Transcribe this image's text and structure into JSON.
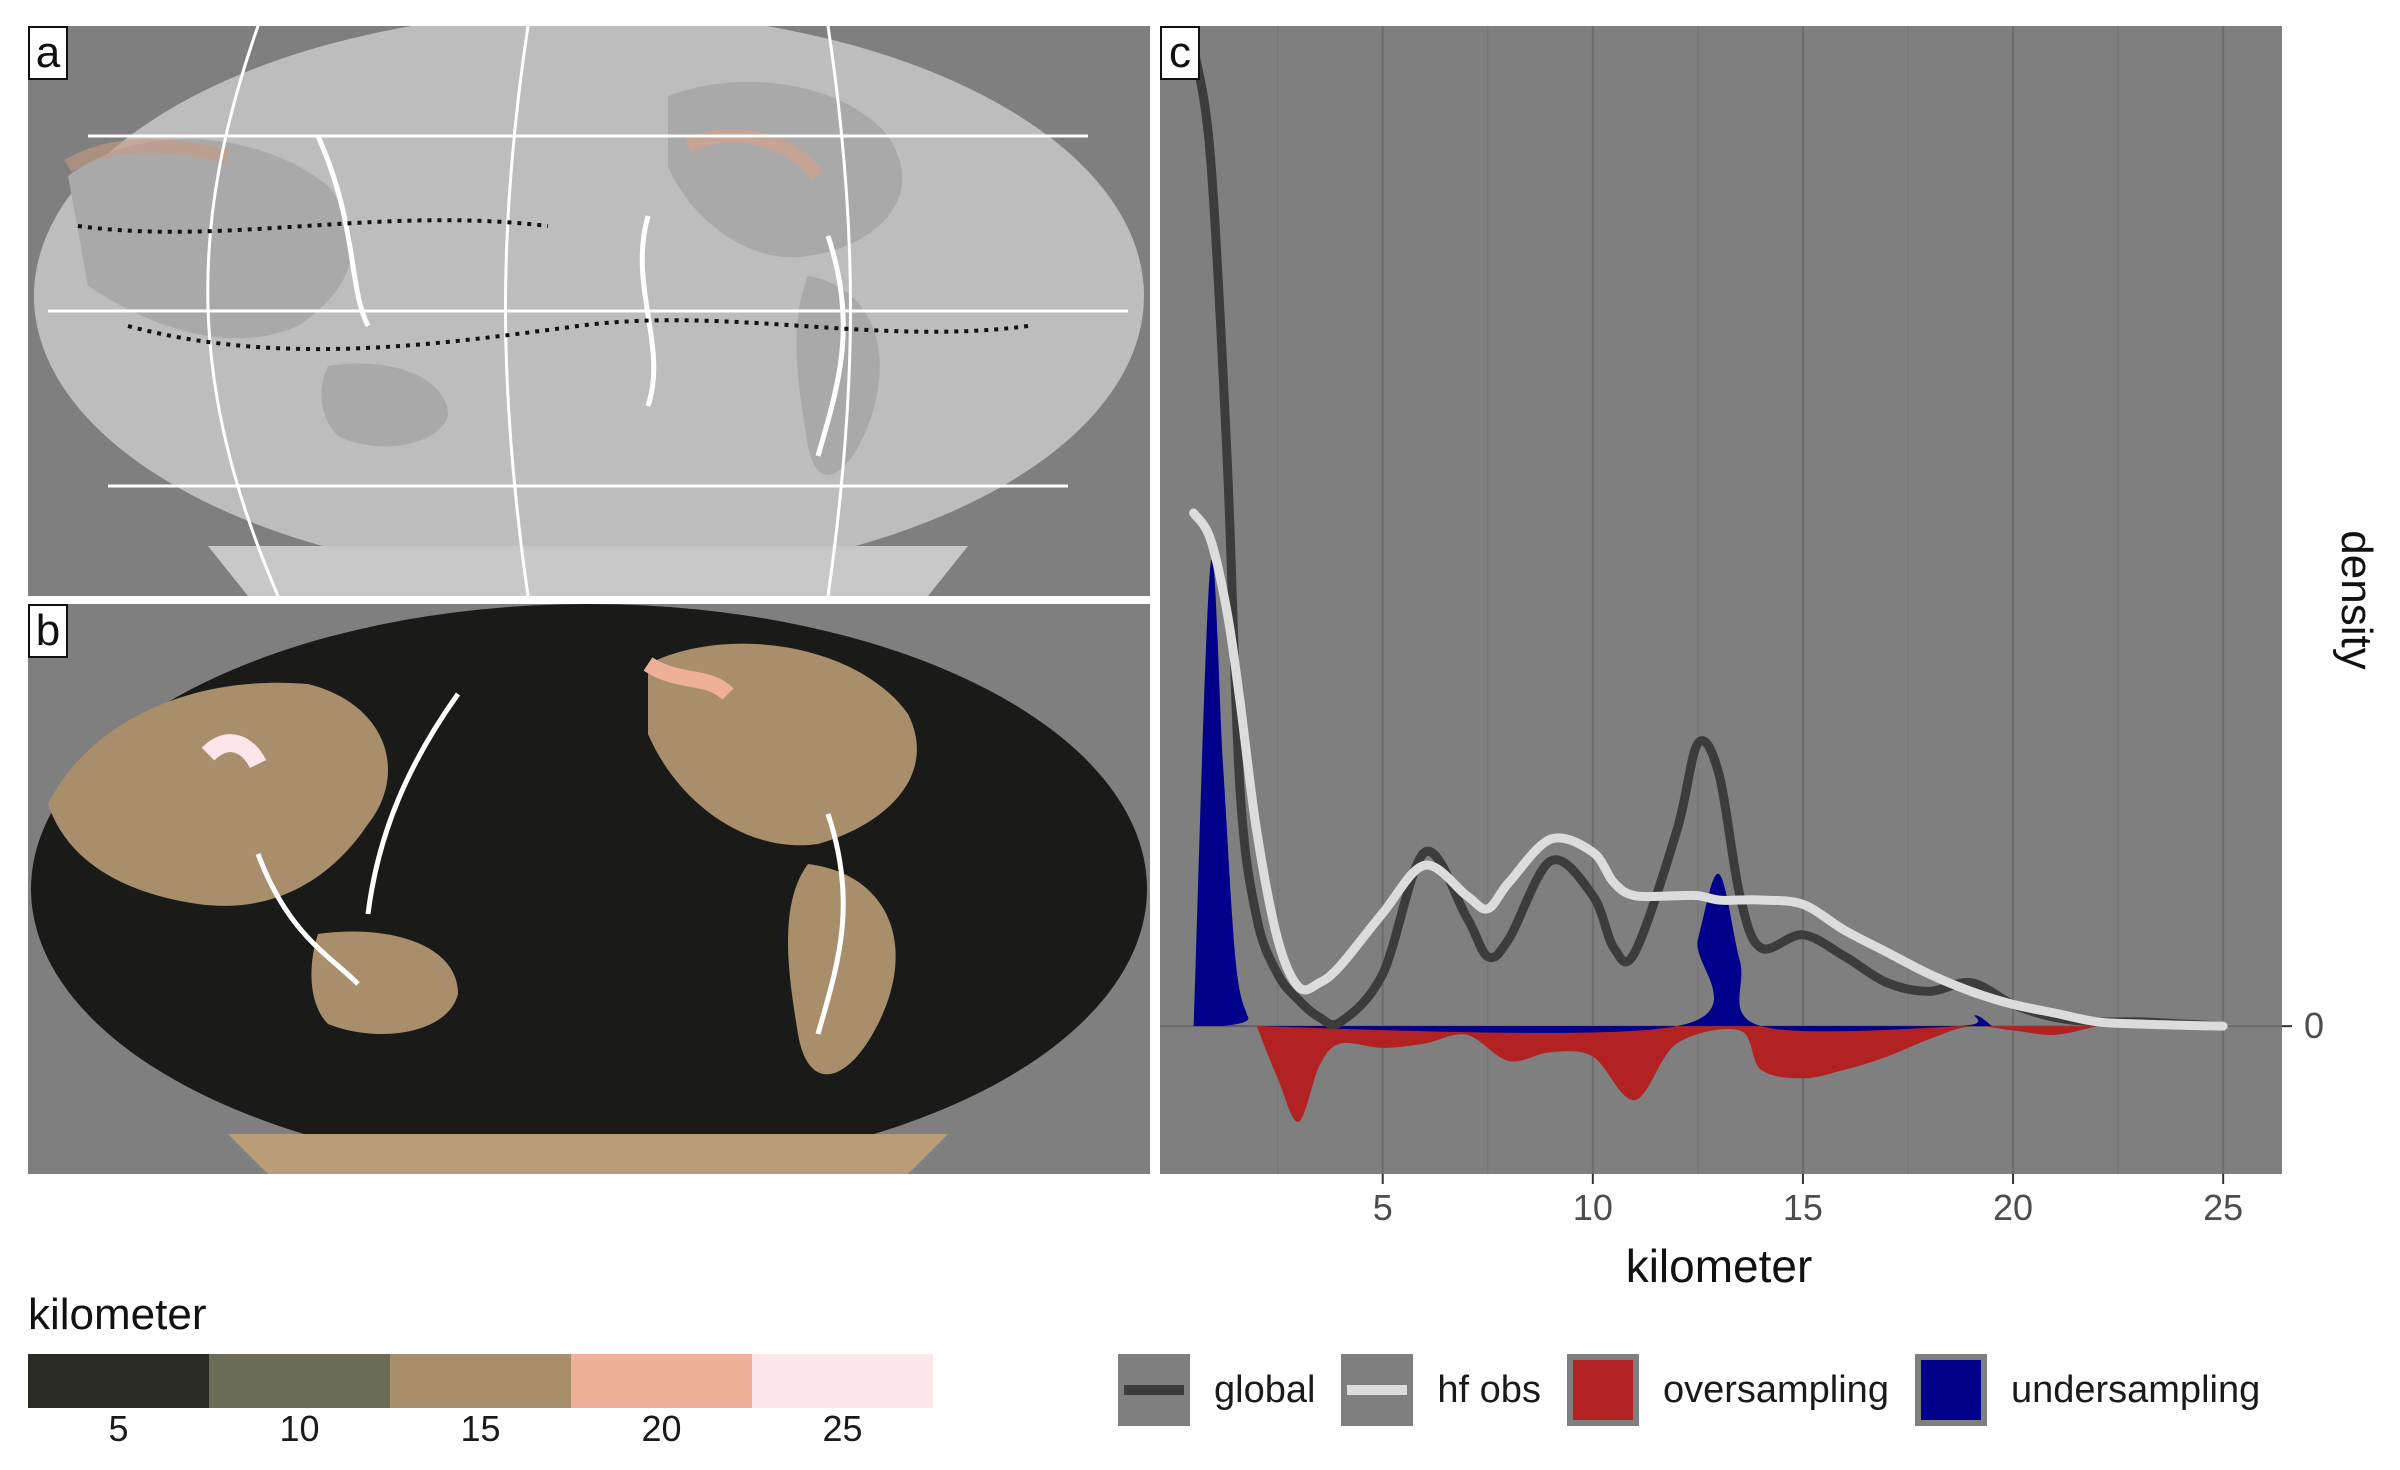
{
  "panels": {
    "a": {
      "tag": "a"
    },
    "b": {
      "tag": "b"
    },
    "c": {
      "tag": "c"
    }
  },
  "map_legend": {
    "title": "kilometer",
    "ticks": [
      "5",
      "10",
      "15",
      "20",
      "25"
    ],
    "colors": [
      "#2b2b26",
      "#6b6b58",
      "#a88e6a",
      "#efb09a",
      "#fde6ea"
    ]
  },
  "colors": {
    "panel_bg": "#7f7f7f",
    "land": "#bdbdbd",
    "global": "#3c3c3c",
    "hf_obs": "#dcdcdc",
    "oversampling": "#b22222",
    "undersampling": "#00008b"
  },
  "chart_data": {
    "type": "area",
    "xlabel": "kilometer",
    "ylabel": "density",
    "xlim": [
      -0.3,
      26.4
    ],
    "ylim": [
      -0.34,
      2.3
    ],
    "xticks": [
      5,
      10,
      15,
      20,
      25
    ],
    "yticks": [
      0
    ],
    "grid": true,
    "legend_position": "bottom",
    "x": [
      0.5,
      0.9,
      1.3,
      1.6,
      2,
      2.5,
      3,
      3.5,
      4,
      5,
      6,
      7,
      7.5,
      8,
      9,
      10,
      10.5,
      11,
      12,
      12.5,
      13,
      13.5,
      14,
      15,
      16,
      17,
      18,
      19,
      20,
      21,
      22,
      23,
      24,
      25
    ],
    "series": [
      {
        "name": "global",
        "kind": "line",
        "values": [
          2.25,
          2.0,
          1.3,
          0.55,
          0.25,
          0.12,
          0.06,
          0.02,
          0.01,
          0.12,
          0.4,
          0.25,
          0.16,
          0.2,
          0.38,
          0.3,
          0.18,
          0.17,
          0.45,
          0.65,
          0.58,
          0.3,
          0.18,
          0.21,
          0.16,
          0.1,
          0.08,
          0.1,
          0.05,
          0.02,
          0.01,
          0.01,
          0.005,
          0
        ]
      },
      {
        "name": "hf obs",
        "kind": "line",
        "values": [
          1.18,
          1.12,
          0.95,
          0.75,
          0.45,
          0.2,
          0.09,
          0.1,
          0.14,
          0.26,
          0.37,
          0.3,
          0.27,
          0.33,
          0.43,
          0.4,
          0.33,
          0.3,
          0.3,
          0.3,
          0.29,
          0.29,
          0.29,
          0.28,
          0.22,
          0.17,
          0.12,
          0.08,
          0.05,
          0.03,
          0.01,
          0.005,
          0.002,
          0
        ]
      }
    ],
    "difference": [
      {
        "name": "oversampling",
        "x": [
          2,
          2.5,
          3,
          3.5,
          4,
          5,
          6,
          7,
          8,
          9,
          10,
          11,
          12,
          13.5,
          14,
          15,
          16,
          17,
          18,
          19,
          20,
          21,
          22
        ],
        "values": [
          0,
          -0.12,
          -0.22,
          -0.09,
          -0.04,
          -0.05,
          -0.04,
          -0.02,
          -0.08,
          -0.06,
          -0.07,
          -0.17,
          -0.04,
          -0.01,
          -0.1,
          -0.12,
          -0.1,
          -0.07,
          -0.03,
          0,
          -0.01,
          -0.02,
          0
        ]
      },
      {
        "name": "undersampling",
        "x": [
          0.5,
          0.9,
          1.2,
          1.5,
          1.8,
          2,
          12,
          12.5,
          13,
          13.5,
          14,
          18.7,
          19.1,
          19.5
        ],
        "values": [
          0,
          1.06,
          0.6,
          0.15,
          0.02,
          0,
          0,
          0.2,
          0.35,
          0.15,
          0,
          0,
          0.025,
          0
        ]
      }
    ]
  },
  "legend_c": [
    {
      "label": "global",
      "style": "line"
    },
    {
      "label": "hf obs",
      "style": "line"
    },
    {
      "label": "oversampling",
      "style": "fill"
    },
    {
      "label": "undersampling",
      "style": "fill"
    }
  ]
}
